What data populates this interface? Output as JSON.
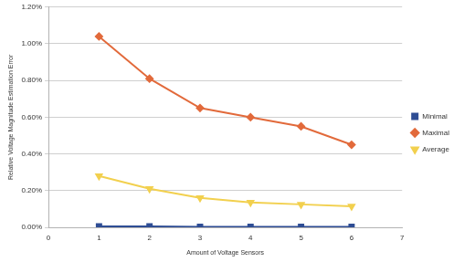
{
  "chart_data": {
    "type": "line",
    "x_label": "Amount of Voltage Sensors",
    "y_label": "Relative Voltage Magnitude Estimation Error",
    "x": [
      1,
      2,
      3,
      4,
      5,
      6
    ],
    "series": [
      {
        "name": "Minimal",
        "color": "#2e4d94",
        "marker": "square",
        "values": [
          0.005,
          0.005,
          0.003,
          0.003,
          0.002,
          0.003
        ]
      },
      {
        "name": "Maximal",
        "color": "#e26a3b",
        "marker": "diamond",
        "values": [
          1.04,
          0.81,
          0.65,
          0.6,
          0.55,
          0.45
        ]
      },
      {
        "name": "Average",
        "color": "#f2d04e",
        "marker": "triangle_down",
        "values": [
          0.28,
          0.21,
          0.16,
          0.135,
          0.125,
          0.115
        ]
      }
    ],
    "xlim": [
      0,
      7
    ],
    "xticks": [
      0,
      1,
      2,
      3,
      4,
      5,
      6,
      7
    ],
    "ylim": [
      0,
      1.2
    ],
    "yticks": [
      {
        "value": 0,
        "label": "0.00%"
      },
      {
        "value": 0.2,
        "label": "0.20%"
      },
      {
        "value": 0.4,
        "label": "0.40%"
      },
      {
        "value": 0.6,
        "label": "0.60%"
      },
      {
        "value": 0.8,
        "label": "0.80%"
      },
      {
        "value": 1.0,
        "label": "1.00%"
      },
      {
        "value": 1.2,
        "label": "1.20%"
      }
    ],
    "grid": "y",
    "legend": "right"
  }
}
